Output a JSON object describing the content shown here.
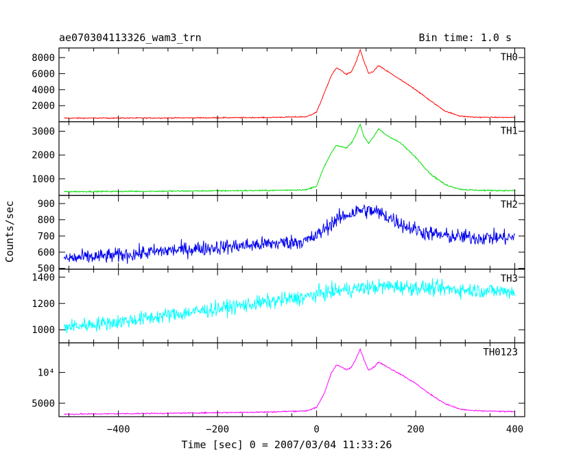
{
  "chart_data": {
    "type": "line",
    "title": "ae070304113326_wam3_trn",
    "subtitle": "Bin time: 1.0 s",
    "xlabel": "Time [sec] 0 = 2007/03/04 11:33:26",
    "ylabel": "Counts/sec",
    "xlim": [
      -520,
      420
    ],
    "x_ticks": [
      -400,
      -200,
      0,
      200,
      400
    ],
    "panels": [
      {
        "name": "TH0",
        "color": "#ff0000",
        "ylim": [
          0,
          9200
        ],
        "y_ticks": [
          2000,
          4000,
          6000,
          8000
        ],
        "y_tick_labels": [
          "2000",
          "4000",
          "6000",
          "8000"
        ],
        "noise": 60,
        "points": [
          [
            -510,
            450
          ],
          [
            -300,
            470
          ],
          [
            -100,
            520
          ],
          [
            -20,
            620
          ],
          [
            0,
            1200
          ],
          [
            15,
            3500
          ],
          [
            30,
            5800
          ],
          [
            40,
            6700
          ],
          [
            50,
            6400
          ],
          [
            60,
            5900
          ],
          [
            70,
            6200
          ],
          [
            80,
            7500
          ],
          [
            88,
            9000
          ],
          [
            95,
            7600
          ],
          [
            105,
            6000
          ],
          [
            115,
            6300
          ],
          [
            125,
            7000
          ],
          [
            140,
            6400
          ],
          [
            170,
            5200
          ],
          [
            200,
            4000
          ],
          [
            230,
            2600
          ],
          [
            260,
            1300
          ],
          [
            290,
            700
          ],
          [
            320,
            560
          ],
          [
            400,
            520
          ]
        ]
      },
      {
        "name": "TH1",
        "color": "#00dd00",
        "ylim": [
          300,
          3400
        ],
        "y_ticks": [
          1000,
          2000,
          3000
        ],
        "y_tick_labels": [
          "1000",
          "2000",
          "3000"
        ],
        "noise": 25,
        "points": [
          [
            -510,
            460
          ],
          [
            -300,
            480
          ],
          [
            -100,
            510
          ],
          [
            -20,
            540
          ],
          [
            0,
            700
          ],
          [
            15,
            1500
          ],
          [
            30,
            2100
          ],
          [
            40,
            2400
          ],
          [
            50,
            2350
          ],
          [
            60,
            2300
          ],
          [
            70,
            2500
          ],
          [
            80,
            2900
          ],
          [
            88,
            3300
          ],
          [
            95,
            2800
          ],
          [
            105,
            2500
          ],
          [
            115,
            2750
          ],
          [
            125,
            3100
          ],
          [
            140,
            2850
          ],
          [
            170,
            2500
          ],
          [
            200,
            1900
          ],
          [
            230,
            1200
          ],
          [
            260,
            750
          ],
          [
            290,
            560
          ],
          [
            320,
            520
          ],
          [
            400,
            500
          ]
        ]
      },
      {
        "name": "TH2",
        "color": "#0000ee",
        "ylim": [
          495,
          950
        ],
        "y_ticks": [
          500,
          600,
          700,
          800,
          900
        ],
        "y_tick_labels": [
          "500",
          "600",
          "700",
          "800",
          "900"
        ],
        "noise": 38,
        "points": [
          [
            -510,
            560
          ],
          [
            -400,
            580
          ],
          [
            -300,
            610
          ],
          [
            -200,
            630
          ],
          [
            -100,
            650
          ],
          [
            -20,
            670
          ],
          [
            0,
            700
          ],
          [
            30,
            780
          ],
          [
            60,
            830
          ],
          [
            90,
            860
          ],
          [
            120,
            850
          ],
          [
            150,
            810
          ],
          [
            180,
            760
          ],
          [
            220,
            720
          ],
          [
            260,
            700
          ],
          [
            320,
            690
          ],
          [
            400,
            690
          ]
        ]
      },
      {
        "name": "TH3",
        "color": "#00ffff",
        "ylim": [
          900,
          1460
        ],
        "y_ticks": [
          1000,
          1200,
          1400
        ],
        "y_tick_labels": [
          "1000",
          "1200",
          "1400"
        ],
        "noise": 45,
        "points": [
          [
            -510,
            1020
          ],
          [
            -400,
            1060
          ],
          [
            -300,
            1110
          ],
          [
            -200,
            1160
          ],
          [
            -100,
            1210
          ],
          [
            -20,
            1250
          ],
          [
            0,
            1270
          ],
          [
            50,
            1300
          ],
          [
            100,
            1320
          ],
          [
            150,
            1330
          ],
          [
            200,
            1320
          ],
          [
            260,
            1310
          ],
          [
            320,
            1300
          ],
          [
            400,
            1290
          ]
        ]
      },
      {
        "name": "TH0123",
        "color": "#ff00ff",
        "ylim": [
          2800,
          14800
        ],
        "y_ticks": [
          5000,
          10000
        ],
        "y_tick_labels": [
          "5000",
          "10⁴"
        ],
        "noise": 90,
        "points": [
          [
            -510,
            3200
          ],
          [
            -300,
            3350
          ],
          [
            -100,
            3550
          ],
          [
            -20,
            3750
          ],
          [
            0,
            4300
          ],
          [
            15,
            6500
          ],
          [
            30,
            10000
          ],
          [
            40,
            11200
          ],
          [
            50,
            10900
          ],
          [
            60,
            10400
          ],
          [
            70,
            10800
          ],
          [
            80,
            12300
          ],
          [
            88,
            13800
          ],
          [
            95,
            12200
          ],
          [
            105,
            10400
          ],
          [
            115,
            10800
          ],
          [
            125,
            11700
          ],
          [
            140,
            11000
          ],
          [
            170,
            9700
          ],
          [
            200,
            8200
          ],
          [
            230,
            6400
          ],
          [
            260,
            4900
          ],
          [
            290,
            4000
          ],
          [
            320,
            3750
          ],
          [
            400,
            3600
          ]
        ]
      }
    ]
  }
}
